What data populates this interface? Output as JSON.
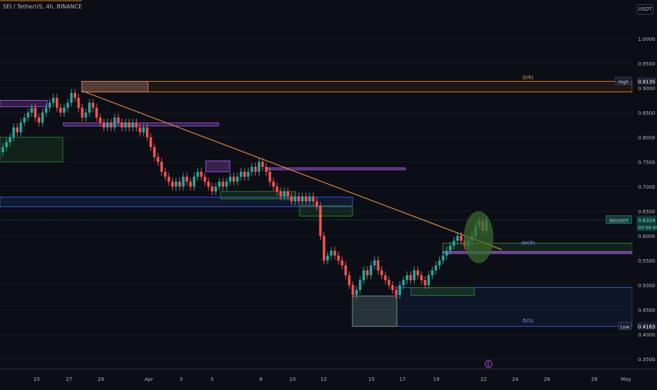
{
  "header": {
    "symbol_title": "SEI / TetherUS, 4h, BINANCE",
    "currency_button": "USDT"
  },
  "colors": {
    "background": "#0c0e15",
    "up": "#26a69a",
    "down": "#ef5350",
    "trendline": "#e08a3c",
    "zone_orange": "#e07a1c",
    "zone_blue": "#2a5bd7",
    "zone_purple": "#9c4fd6",
    "zone_green": "#2e7d32",
    "axis_text": "#b2b5be"
  },
  "chart_data": {
    "type": "candlestick",
    "y_axis": {
      "range": [
        0.33,
        1.05
      ],
      "ticks": [
        "1.0000",
        "0.9500",
        "0.9000",
        "0.8500",
        "0.8000",
        "0.7500",
        "0.7000",
        "0.6500",
        "0.6000",
        "0.5500",
        "0.5000",
        "0.4500",
        "0.4000",
        "0.3500"
      ]
    },
    "x_axis": {
      "ticks": [
        "25",
        "27",
        "29",
        "Apr",
        "3",
        "5",
        "8",
        "10",
        "12",
        "15",
        "17",
        "19",
        "22",
        "24",
        "26",
        "29",
        "May"
      ]
    },
    "price_labels": [
      {
        "tag": "High",
        "value": "0.9135",
        "price": 0.9135
      },
      {
        "tag": "SEIUSDT",
        "value": "0.6324",
        "countdown": "03:50:49",
        "price": 0.6324
      },
      {
        "tag": "Low",
        "value": "0.4163",
        "price": 0.4163
      }
    ],
    "zone_labels": [
      {
        "text": "D(R)",
        "price": 0.9135
      },
      {
        "text": "4H(R)",
        "price": 0.578
      },
      {
        "text": "D(S)",
        "price": 0.42
      }
    ],
    "trendline": {
      "from": {
        "date": "Mar 28",
        "price": 0.8943
      },
      "to": {
        "date": "Apr 22",
        "price": 0.5718
      }
    },
    "event_icon": "lightning-icon",
    "series": [
      {
        "name": "SEIUSDT 4h close",
        "values": [
          0.78,
          0.79,
          0.8,
          0.82,
          0.81,
          0.83,
          0.84,
          0.85,
          0.86,
          0.84,
          0.83,
          0.85,
          0.86,
          0.87,
          0.88,
          0.86,
          0.85,
          0.86,
          0.87,
          0.89,
          0.88,
          0.86,
          0.84,
          0.85,
          0.87,
          0.86,
          0.84,
          0.83,
          0.82,
          0.83,
          0.82,
          0.84,
          0.83,
          0.82,
          0.83,
          0.82,
          0.83,
          0.82,
          0.81,
          0.82,
          0.8,
          0.78,
          0.76,
          0.75,
          0.73,
          0.72,
          0.71,
          0.7,
          0.71,
          0.7,
          0.72,
          0.71,
          0.7,
          0.72,
          0.73,
          0.72,
          0.71,
          0.7,
          0.69,
          0.7,
          0.71,
          0.7,
          0.71,
          0.72,
          0.71,
          0.72,
          0.73,
          0.72,
          0.73,
          0.74,
          0.73,
          0.75,
          0.74,
          0.73,
          0.71,
          0.7,
          0.69,
          0.68,
          0.69,
          0.68,
          0.67,
          0.68,
          0.67,
          0.68,
          0.67,
          0.68,
          0.67,
          0.66,
          0.6,
          0.55,
          0.56,
          0.57,
          0.56,
          0.55,
          0.54,
          0.52,
          0.5,
          0.48,
          0.49,
          0.51,
          0.53,
          0.52,
          0.54,
          0.55,
          0.53,
          0.52,
          0.51,
          0.5,
          0.49,
          0.48,
          0.5,
          0.51,
          0.52,
          0.51,
          0.53,
          0.52,
          0.51,
          0.5,
          0.52,
          0.53,
          0.54,
          0.55,
          0.56,
          0.57,
          0.58,
          0.59,
          0.6,
          0.59,
          0.58,
          0.59,
          0.6,
          0.62,
          0.63,
          0.61,
          0.6324
        ]
      }
    ]
  }
}
